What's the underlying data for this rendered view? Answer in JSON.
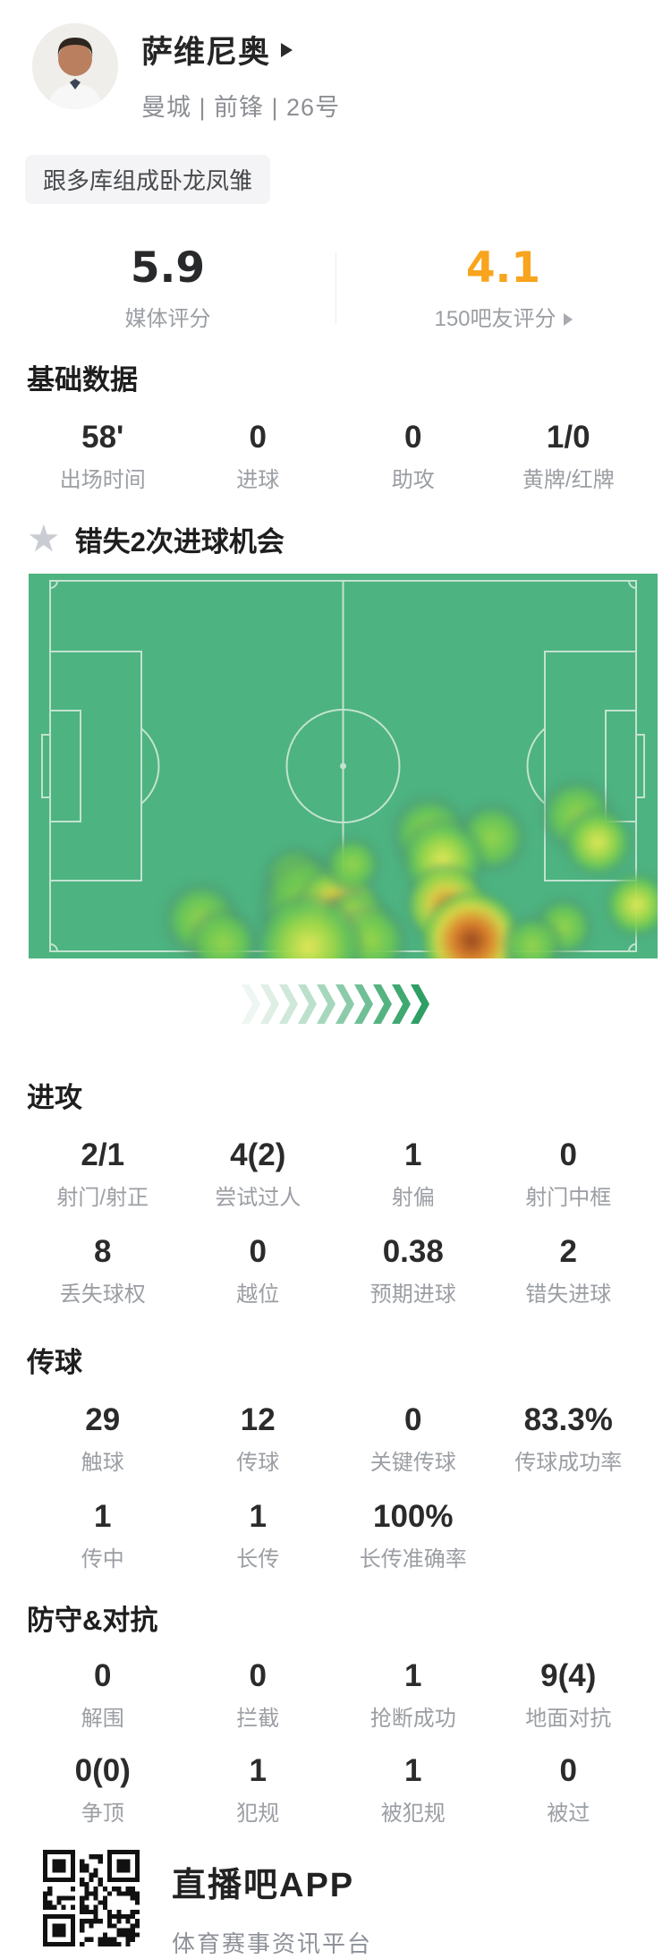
{
  "header": {
    "name": "萨维尼奥",
    "meta": "曼城 | 前锋 | 26号",
    "tag": "跟多库组成卧龙凤雏"
  },
  "ratings": {
    "media": {
      "score": "5.9",
      "label": "媒体评分"
    },
    "fans": {
      "score": "4.1",
      "label": "150吧友评分",
      "accent_color": "#f8a41d"
    }
  },
  "highlight": {
    "star_icon": "★",
    "text": "错失2次进球机会"
  },
  "stats": {
    "basic": {
      "title": "基础数据",
      "rows": [
        [
          {
            "v": "58'",
            "l": "出场时间"
          },
          {
            "v": "0",
            "l": "进球"
          },
          {
            "v": "0",
            "l": "助攻"
          },
          {
            "v": "1/0",
            "l": "黄牌/红牌"
          }
        ]
      ]
    },
    "attack": {
      "title": "进攻",
      "rows": [
        [
          {
            "v": "2/1",
            "l": "射门/射正"
          },
          {
            "v": "4(2)",
            "l": "尝试过人"
          },
          {
            "v": "1",
            "l": "射偏"
          },
          {
            "v": "0",
            "l": "射门中框"
          }
        ],
        [
          {
            "v": "8",
            "l": "丢失球权"
          },
          {
            "v": "0",
            "l": "越位"
          },
          {
            "v": "0.38",
            "l": "预期进球"
          },
          {
            "v": "2",
            "l": "错失进球"
          }
        ]
      ]
    },
    "passing": {
      "title": "传球",
      "rows": [
        [
          {
            "v": "29",
            "l": "触球"
          },
          {
            "v": "12",
            "l": "传球"
          },
          {
            "v": "0",
            "l": "关键传球"
          },
          {
            "v": "83.3%",
            "l": "传球成功率"
          }
        ],
        [
          {
            "v": "1",
            "l": "传中"
          },
          {
            "v": "1",
            "l": "长传"
          },
          {
            "v": "100%",
            "l": "长传准确率"
          }
        ]
      ]
    },
    "defense": {
      "title": "防守&对抗",
      "rows": [
        [
          {
            "v": "0",
            "l": "解围"
          },
          {
            "v": "0",
            "l": "拦截"
          },
          {
            "v": "1",
            "l": "抢断成功"
          },
          {
            "v": "9(4)",
            "l": "地面对抗"
          }
        ],
        [
          {
            "v": "0(0)",
            "l": "争顶"
          },
          {
            "v": "1",
            "l": "犯规"
          },
          {
            "v": "1",
            "l": "被犯规"
          },
          {
            "v": "0",
            "l": "被过"
          }
        ]
      ]
    }
  },
  "heatmap": {
    "pitch_color": "#4db380",
    "line_color": "#cfe9d9",
    "points": [
      {
        "x": 63.7,
        "y": 67.4,
        "s": 46,
        "heat": 2
      },
      {
        "x": 73.7,
        "y": 68.6,
        "s": 42,
        "heat": 2
      },
      {
        "x": 42.4,
        "y": 79.1,
        "s": 38,
        "heat": 2
      },
      {
        "x": 44.5,
        "y": 86.0,
        "s": 60,
        "heat": 2
      },
      {
        "x": 49.2,
        "y": 87.2,
        "s": 48,
        "heat": 4
      },
      {
        "x": 52.0,
        "y": 91.0,
        "s": 40,
        "heat": 3
      },
      {
        "x": 54.5,
        "y": 95.3,
        "s": 44,
        "heat": 2
      },
      {
        "x": 65.9,
        "y": 74.4,
        "s": 48,
        "heat": 3
      },
      {
        "x": 66.4,
        "y": 86.0,
        "s": 46,
        "heat": 4
      },
      {
        "x": 87.2,
        "y": 62.8,
        "s": 44,
        "heat": 2
      },
      {
        "x": 90.5,
        "y": 69.8,
        "s": 40,
        "heat": 3
      },
      {
        "x": 96.7,
        "y": 86.0,
        "s": 38,
        "heat": 3
      },
      {
        "x": 85.1,
        "y": 91.9,
        "s": 36,
        "heat": 2
      },
      {
        "x": 73.0,
        "y": 97.7,
        "s": 36,
        "heat": 2
      },
      {
        "x": 27.5,
        "y": 90.0,
        "s": 46,
        "heat": 2
      },
      {
        "x": 31.0,
        "y": 96.0,
        "s": 42,
        "heat": 2
      },
      {
        "x": 44.5,
        "y": 97.0,
        "s": 62,
        "heat": 3
      },
      {
        "x": 70.4,
        "y": 95.3,
        "s": 56,
        "heat": 5
      },
      {
        "x": 80.1,
        "y": 96.5,
        "s": 36,
        "heat": 2
      },
      {
        "x": 51.5,
        "y": 75.5,
        "s": 34,
        "heat": 2
      }
    ]
  },
  "chevrons": {
    "colors": [
      "#eef6f1",
      "#dfefe6",
      "#cfe8da",
      "#bce0cc",
      "#a6d7bc",
      "#8ccbaa",
      "#70bf96",
      "#55b381",
      "#3fa971",
      "#2f9f64"
    ]
  },
  "footer": {
    "app_name": "直播吧APP",
    "app_desc": "体育赛事资讯平台"
  }
}
